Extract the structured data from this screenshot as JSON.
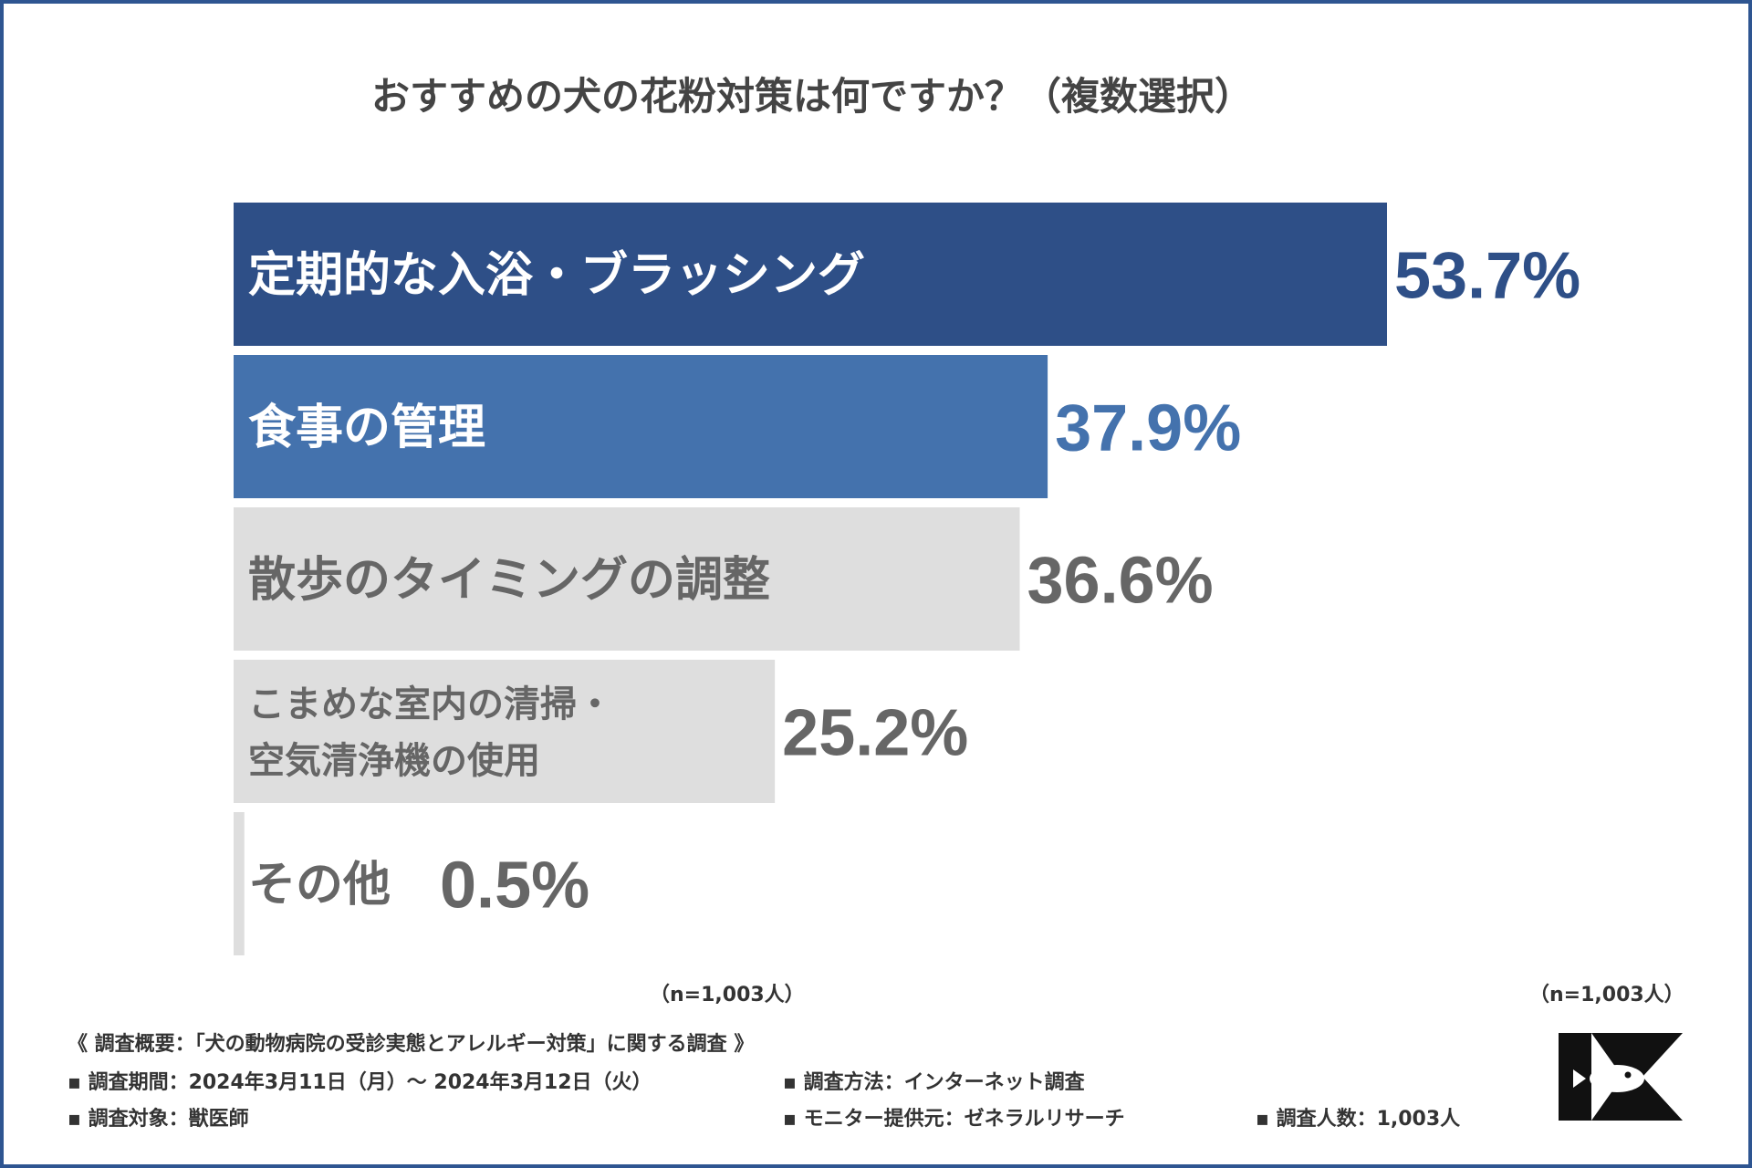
{
  "title": "おすすめの犬の花粉対策は何ですか？（複数選択）",
  "chart_data": {
    "type": "bar",
    "orientation": "horizontal",
    "title": "おすすめの犬の花粉対策は何ですか？（複数選択）",
    "unit": "%",
    "xlim": [
      0,
      100
    ],
    "categories": [
      "定期的な入浴・ブラッシング",
      "食事の管理",
      "散歩のタイミングの調整",
      "こまめな室内の清掃・空気清浄機の使用",
      "その他"
    ],
    "label_lines": [
      [
        "定期的な入浴・ブラッシング"
      ],
      [
        "食事の管理"
      ],
      [
        "散歩のタイミングの調整"
      ],
      [
        "こまめな室内の清掃・",
        "空気清浄機の使用"
      ],
      [
        "その他"
      ]
    ],
    "values": [
      53.7,
      37.9,
      36.6,
      25.2,
      0.5
    ],
    "value_labels": [
      "53.7%",
      "37.9%",
      "36.6%",
      "25.2%",
      "0.5%"
    ],
    "bar_colors": [
      "#2e4f87",
      "#4472ad",
      "#dedede",
      "#dedede",
      "#dedede"
    ],
    "label_colors": [
      "#ffffff",
      "#ffffff",
      "#666666",
      "#666666",
      "#666666"
    ],
    "value_colors": [
      "#2e4f87",
      "#4472ad",
      "#666666",
      "#666666",
      "#666666"
    ]
  },
  "sample_note_left": "（n=1,003人）",
  "sample_note_right": "（n=1,003人）",
  "survey": {
    "heading": "《 調査概要：「犬の動物病院の受診実態とアレルギー対策」に関する調査 》",
    "period": "▪ 調査期間：2024年3月11日（月）～ 2024年3月12日（火）",
    "method": "▪ 調査方法：インターネット調査",
    "target": "▪ 調査対象：獣医師",
    "provider": "▪ モニター提供元：ゼネラルリサーチ",
    "count": "▪ 調査人数：1,003人"
  },
  "colors": {
    "frame": "#2e5591",
    "title": "#444444",
    "text": "#333333"
  }
}
